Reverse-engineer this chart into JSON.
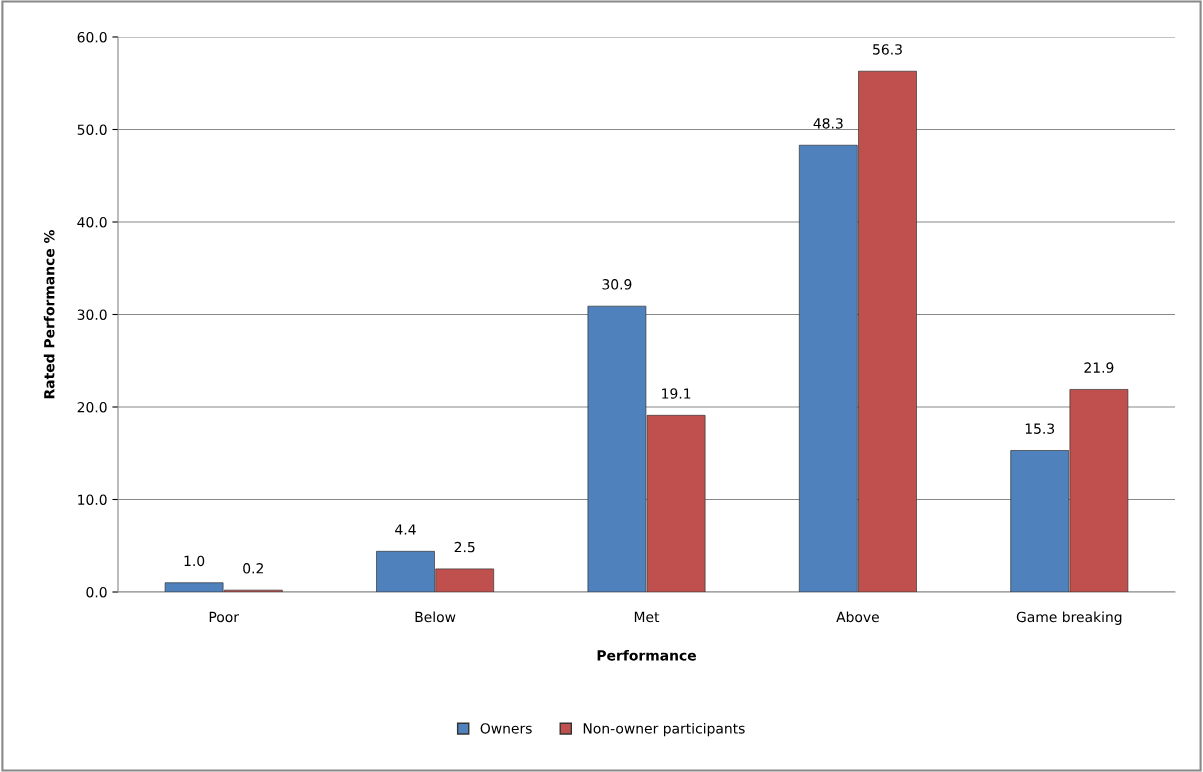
{
  "chart_data": {
    "type": "bar",
    "xlabel": "Performance",
    "ylabel": "Rated Performance %",
    "categories": [
      "Poor",
      "Below",
      "Met",
      "Above",
      "Game breaking"
    ],
    "series": [
      {
        "name": "Owners",
        "color": "#4f81bd",
        "values": [
          1.0,
          4.4,
          30.9,
          48.3,
          15.3
        ],
        "value_labels": [
          "1.0",
          "4.4",
          "30.9",
          "48.3",
          "15.3"
        ]
      },
      {
        "name": "Non-owner participants",
        "color": "#c0504d",
        "values": [
          0.2,
          2.5,
          19.1,
          56.3,
          21.9
        ],
        "value_labels": [
          "0.2",
          "2.5",
          "19.1",
          "56.3",
          "21.9"
        ]
      }
    ],
    "ylim": [
      0,
      60
    ],
    "yticks": [
      {
        "value": 0,
        "label": "0.0"
      },
      {
        "value": 10,
        "label": "10.0"
      },
      {
        "value": 20,
        "label": "20.0"
      },
      {
        "value": 30,
        "label": "30.0"
      },
      {
        "value": 40,
        "label": "40.0"
      },
      {
        "value": 50,
        "label": "50.0"
      },
      {
        "value": 60,
        "label": "60.0"
      }
    ],
    "grid": "y",
    "legend": "bottom"
  }
}
